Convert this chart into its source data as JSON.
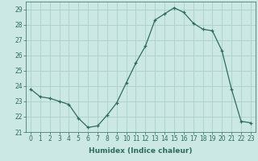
{
  "x": [
    0,
    1,
    2,
    3,
    4,
    5,
    6,
    7,
    8,
    9,
    10,
    11,
    12,
    13,
    14,
    15,
    16,
    17,
    18,
    19,
    20,
    21,
    22,
    23
  ],
  "y": [
    23.8,
    23.3,
    23.2,
    23.0,
    22.8,
    21.9,
    21.3,
    21.4,
    22.1,
    22.9,
    24.2,
    25.5,
    26.6,
    28.3,
    28.7,
    29.1,
    28.8,
    28.1,
    27.7,
    27.6,
    26.3,
    23.8,
    21.7,
    21.6
  ],
  "line_color": "#2e6b5e",
  "marker": "+",
  "bg_color": "#cce8e4",
  "grid_color": "#aacfcc",
  "xlabel": "Humidex (Indice chaleur)",
  "xlim": [
    -0.5,
    23.5
  ],
  "ylim": [
    21.0,
    29.5
  ],
  "yticks": [
    21,
    22,
    23,
    24,
    25,
    26,
    27,
    28,
    29
  ],
  "xticks": [
    0,
    1,
    2,
    3,
    4,
    5,
    6,
    7,
    8,
    9,
    10,
    11,
    12,
    13,
    14,
    15,
    16,
    17,
    18,
    19,
    20,
    21,
    22,
    23
  ],
  "tick_fontsize": 5.5,
  "label_fontsize": 6.5
}
